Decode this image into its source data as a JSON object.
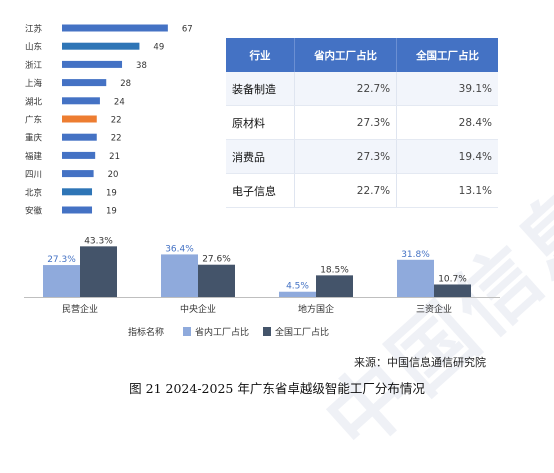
{
  "chart_data": [
    {
      "type": "bar",
      "orientation": "horizontal",
      "categories": [
        "江苏",
        "山东",
        "浙江",
        "上海",
        "湖北",
        "广东",
        "重庆",
        "福建",
        "四川",
        "北京",
        "安徽"
      ],
      "values": [
        67,
        49,
        38,
        28,
        24,
        22,
        22,
        21,
        20,
        19,
        19
      ],
      "bar_colors": [
        "#4472c4",
        "#2e75b6",
        "#4472c4",
        "#4472c4",
        "#4472c4",
        "#ed7d31",
        "#4472c4",
        "#4472c4",
        "#4472c4",
        "#2e75b6",
        "#4472c4"
      ]
    },
    {
      "type": "table",
      "columns": [
        "行业",
        "省内工厂占比",
        "全国工厂占比"
      ],
      "rows": [
        [
          "装备制造",
          "22.7%",
          "39.1%"
        ],
        [
          "原材料",
          "27.3%",
          "28.4%"
        ],
        [
          "消费品",
          "27.3%",
          "19.4%"
        ],
        [
          "电子信息",
          "22.7%",
          "13.1%"
        ]
      ]
    },
    {
      "type": "bar",
      "categories": [
        "民营企业",
        "中央企业",
        "地方国企",
        "三资企业"
      ],
      "series": [
        {
          "name": "省内工厂占比",
          "values": [
            27.3,
            36.4,
            4.5,
            31.8
          ],
          "labels": [
            "27.3%",
            "36.4%",
            "4.5%",
            "31.8%"
          ],
          "color": "#8faadc"
        },
        {
          "name": "全国工厂占比",
          "values": [
            43.3,
            27.6,
            18.5,
            10.7
          ],
          "labels": [
            "43.3%",
            "27.6%",
            "18.5%",
            "10.7%"
          ],
          "color": "#44546a"
        }
      ],
      "legend_title": "指标名称",
      "legend_position": "bottom"
    }
  ],
  "watermark": "中国信息通信研究院",
  "source": "来源：中国信息通信研究院",
  "caption": "图 21 2024-2025 年广东省卓越级智能工厂分布情况"
}
